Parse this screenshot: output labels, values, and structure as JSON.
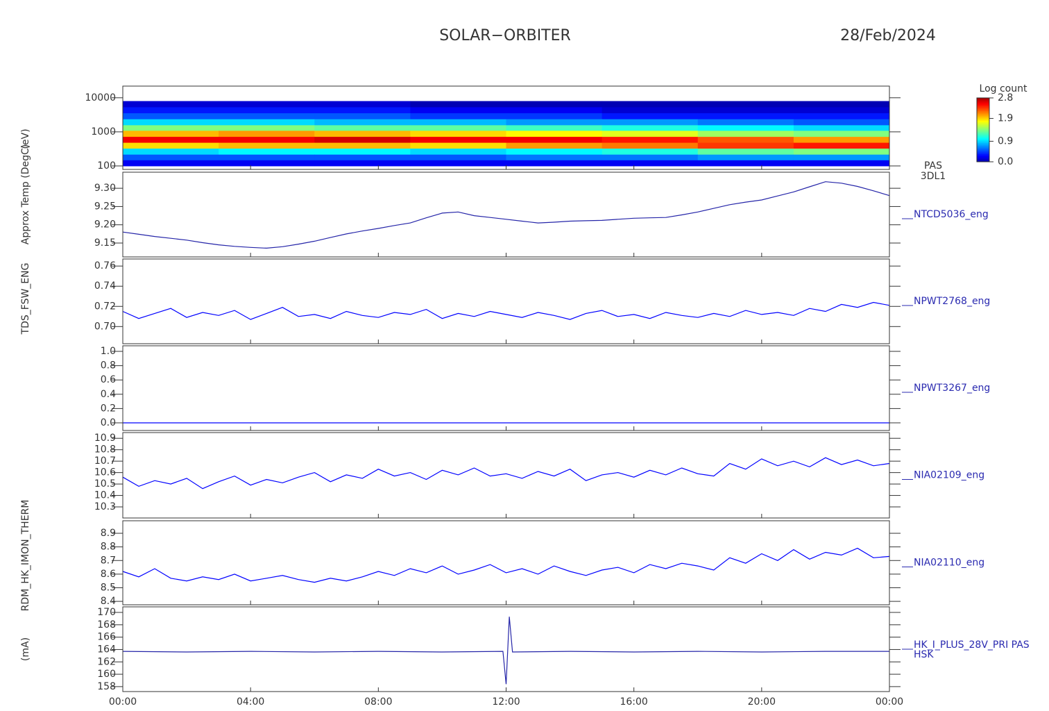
{
  "header": {
    "title": "SOLAR−ORBITER",
    "date": "28/Feb/2024"
  },
  "ylabels": [
    "(eV)",
    "Approx Temp (DegC)",
    "TDS_FSW_ENG",
    "RDM_HK_IMON_THERM",
    "(mA)"
  ],
  "time_axis": {
    "xlim": [
      0,
      24
    ],
    "xticks": [
      {
        "value": 0,
        "label": "00:00"
      },
      {
        "value": 4,
        "label": "04:00"
      },
      {
        "value": 8,
        "label": "08:00"
      },
      {
        "value": 12,
        "label": "12:00"
      },
      {
        "value": 16,
        "label": "16:00"
      },
      {
        "value": 20,
        "label": "20:00"
      },
      {
        "value": 24,
        "label": "00:00"
      }
    ]
  },
  "chart_data": [
    {
      "type": "heatmap",
      "label": [
        "PAS",
        "3DL1"
      ],
      "ylog": true,
      "ylim": [
        79,
        22000
      ],
      "yticks": [
        10000,
        1000,
        100
      ],
      "time_bins": [
        0,
        3,
        6,
        9,
        12,
        15,
        18,
        21,
        24
      ],
      "energy_bins": [
        100,
        150,
        220,
        330,
        490,
        730,
        1100,
        1600,
        2400,
        3600,
        5400,
        8000
      ],
      "z": [
        [
          0.2,
          0.5,
          0.9,
          1.9,
          2.6,
          2.0,
          1.4,
          0.9,
          0.5,
          0.3,
          0.1
        ],
        [
          0.2,
          0.5,
          1.0,
          2.0,
          2.6,
          2.1,
          1.4,
          0.9,
          0.5,
          0.3,
          0.1
        ],
        [
          0.2,
          0.5,
          1.0,
          2.0,
          2.7,
          2.0,
          1.3,
          0.8,
          0.5,
          0.3,
          0.1
        ],
        [
          0.2,
          0.5,
          0.9,
          1.9,
          2.6,
          1.9,
          1.3,
          0.8,
          0.4,
          0.2,
          0.0
        ],
        [
          0.2,
          0.6,
          1.0,
          2.1,
          2.6,
          1.8,
          1.2,
          0.7,
          0.4,
          0.2,
          0.0
        ],
        [
          0.2,
          0.6,
          1.1,
          2.2,
          2.5,
          1.7,
          1.1,
          0.7,
          0.3,
          0.1,
          0.0
        ],
        [
          0.2,
          0.7,
          1.3,
          2.4,
          2.3,
          1.5,
          1.0,
          0.6,
          0.3,
          0.1,
          0.0
        ],
        [
          0.2,
          0.7,
          1.4,
          2.5,
          2.1,
          1.4,
          0.9,
          0.5,
          0.3,
          0.1,
          0.0
        ]
      ],
      "colorbar": {
        "title": "Log count",
        "zlim": [
          0,
          2.8
        ],
        "ticks": [
          2.8,
          1.9,
          0.9,
          {
            "value": 0,
            "label": "0.0"
          }
        ]
      }
    },
    {
      "type": "line",
      "label": [
        "NTCD5036_eng"
      ],
      "color": "#2424a8",
      "ylim": [
        9.112,
        9.344
      ],
      "yticks": [
        {
          "value": 9.3,
          "label": "9.30"
        },
        9.25,
        {
          "value": 9.2,
          "label": "9.20"
        },
        9.15
      ],
      "x": [
        0,
        0.5,
        1,
        1.5,
        2,
        2.5,
        3,
        3.5,
        4,
        4.5,
        5,
        5.5,
        6,
        6.5,
        7,
        7.5,
        8,
        8.5,
        9,
        9.5,
        10,
        10.5,
        11,
        11.5,
        12,
        12.5,
        13,
        13.5,
        14,
        14.5,
        15,
        15.5,
        16,
        16.5,
        17,
        17.5,
        18,
        18.5,
        19,
        19.5,
        20,
        20.5,
        21,
        21.5,
        22,
        22.5,
        23,
        23.5,
        24
      ],
      "values": [
        9.18,
        9.174,
        9.168,
        9.163,
        9.158,
        9.151,
        9.145,
        9.141,
        9.138,
        9.136,
        9.14,
        9.147,
        9.155,
        9.165,
        9.175,
        9.183,
        9.19,
        9.198,
        9.205,
        9.219,
        9.232,
        9.235,
        9.225,
        9.22,
        9.215,
        9.21,
        9.205,
        9.207,
        9.21,
        9.211,
        9.212,
        9.215,
        9.218,
        9.219,
        9.22,
        9.227,
        9.235,
        9.245,
        9.255,
        9.262,
        9.268,
        9.279,
        9.29,
        9.304,
        9.318,
        9.314,
        9.305,
        9.293,
        9.28
      ]
    },
    {
      "type": "line",
      "label": [
        "NPWT2768_eng"
      ],
      "color": "#0000ff",
      "ylim": [
        0.683,
        0.767
      ],
      "yticks": [
        0.76,
        0.74,
        0.72,
        {
          "value": 0.7,
          "label": "0.70"
        }
      ],
      "x": [
        0,
        0.5,
        1,
        1.5,
        2,
        2.5,
        3,
        3.5,
        4,
        4.5,
        5,
        5.5,
        6,
        6.5,
        7,
        7.5,
        8,
        8.5,
        9,
        9.5,
        10,
        10.5,
        11,
        11.5,
        12,
        12.5,
        13,
        13.5,
        14,
        14.5,
        15,
        15.5,
        16,
        16.5,
        17,
        17.5,
        18,
        18.5,
        19,
        19.5,
        20,
        20.5,
        21,
        21.5,
        22,
        22.5,
        23,
        23.5,
        24
      ],
      "values": [
        0.715,
        0.708,
        0.713,
        0.718,
        0.709,
        0.714,
        0.711,
        0.716,
        0.707,
        0.713,
        0.719,
        0.71,
        0.712,
        0.708,
        0.715,
        0.711,
        0.709,
        0.714,
        0.712,
        0.717,
        0.708,
        0.713,
        0.71,
        0.715,
        0.712,
        0.709,
        0.714,
        0.711,
        0.707,
        0.713,
        0.716,
        0.71,
        0.712,
        0.708,
        0.714,
        0.711,
        0.709,
        0.713,
        0.71,
        0.716,
        0.712,
        0.714,
        0.711,
        0.718,
        0.715,
        0.722,
        0.719,
        0.724,
        0.721
      ]
    },
    {
      "type": "line",
      "label": [
        "NPWT3267_eng"
      ],
      "color": "#0000ff",
      "ylim": [
        -0.107,
        1.078
      ],
      "yticks": [
        {
          "value": 1,
          "label": "1.0"
        },
        0.8,
        0.6,
        0.4,
        0.2,
        {
          "value": 0,
          "label": "0.0"
        }
      ],
      "x": [
        0,
        24
      ],
      "values": [
        0,
        0
      ]
    },
    {
      "type": "line",
      "label": [
        "NIA02109_eng"
      ],
      "color": "#0000ff",
      "ylim": [
        10.203,
        10.95
      ],
      "yticks": [
        10.9,
        10.8,
        10.7,
        10.6,
        10.5,
        10.4,
        10.3
      ],
      "x": [
        0,
        0.5,
        1,
        1.5,
        2,
        2.5,
        3,
        3.5,
        4,
        4.5,
        5,
        5.5,
        6,
        6.5,
        7,
        7.5,
        8,
        8.5,
        9,
        9.5,
        10,
        10.5,
        11,
        11.5,
        12,
        12.5,
        13,
        13.5,
        14,
        14.5,
        15,
        15.5,
        16,
        16.5,
        17,
        17.5,
        18,
        18.5,
        19,
        19.5,
        20,
        20.5,
        21,
        21.5,
        22,
        22.5,
        23,
        23.5,
        24
      ],
      "values": [
        10.56,
        10.48,
        10.53,
        10.5,
        10.55,
        10.46,
        10.52,
        10.57,
        10.49,
        10.54,
        10.51,
        10.56,
        10.6,
        10.52,
        10.58,
        10.55,
        10.63,
        10.57,
        10.6,
        10.54,
        10.62,
        10.58,
        10.64,
        10.57,
        10.59,
        10.55,
        10.61,
        10.57,
        10.63,
        10.53,
        10.58,
        10.6,
        10.56,
        10.62,
        10.58,
        10.64,
        10.59,
        10.57,
        10.68,
        10.63,
        10.72,
        10.66,
        10.7,
        10.65,
        10.73,
        10.67,
        10.71,
        10.66,
        10.68
      ]
    },
    {
      "type": "line",
      "label": [
        "NIA02110_eng"
      ],
      "color": "#0000ff",
      "ylim": [
        8.375,
        8.992
      ],
      "yticks": [
        8.9,
        8.8,
        8.7,
        8.6,
        8.5,
        8.4
      ],
      "x": [
        0,
        0.5,
        1,
        1.5,
        2,
        2.5,
        3,
        3.5,
        4,
        4.5,
        5,
        5.5,
        6,
        6.5,
        7,
        7.5,
        8,
        8.5,
        9,
        9.5,
        10,
        10.5,
        11,
        11.5,
        12,
        12.5,
        13,
        13.5,
        14,
        14.5,
        15,
        15.5,
        16,
        16.5,
        17,
        17.5,
        18,
        18.5,
        19,
        19.5,
        20,
        20.5,
        21,
        21.5,
        22,
        22.5,
        23,
        23.5,
        24
      ],
      "values": [
        8.62,
        8.58,
        8.64,
        8.57,
        8.55,
        8.58,
        8.56,
        8.6,
        8.55,
        8.57,
        8.59,
        8.56,
        8.54,
        8.57,
        8.55,
        8.58,
        8.62,
        8.59,
        8.64,
        8.61,
        8.66,
        8.6,
        8.63,
        8.67,
        8.61,
        8.64,
        8.6,
        8.66,
        8.62,
        8.59,
        8.63,
        8.65,
        8.61,
        8.67,
        8.64,
        8.68,
        8.66,
        8.63,
        8.72,
        8.68,
        8.75,
        8.7,
        8.78,
        8.71,
        8.76,
        8.74,
        8.79,
        8.72,
        8.73
      ]
    },
    {
      "type": "line",
      "label": [
        "HK_I_PLUS_28V_PRI PAS",
        "HSK"
      ],
      "color": "#2424a8",
      "ylim": [
        157.2,
        170.9
      ],
      "yticks": [
        170,
        168,
        166,
        164,
        162,
        160,
        158
      ],
      "x": [
        0,
        2,
        4,
        6,
        8,
        10,
        11.9,
        12.0,
        12.1,
        12.2,
        14,
        16,
        18,
        20,
        22,
        24
      ],
      "values": [
        163.7,
        163.6,
        163.7,
        163.6,
        163.7,
        163.6,
        163.7,
        158.4,
        169.3,
        163.6,
        163.7,
        163.6,
        163.7,
        163.6,
        163.7,
        163.7
      ]
    }
  ]
}
